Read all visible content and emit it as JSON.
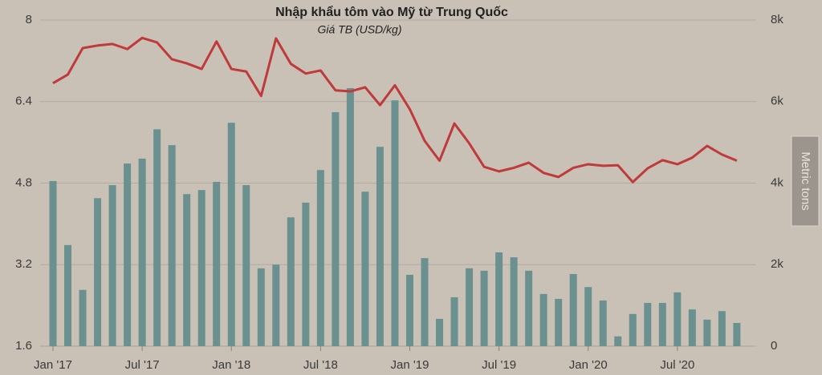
{
  "chart_data": {
    "type": "bar-line",
    "title": "Nhập khẩu tôm vào Mỹ từ Trung Quốc",
    "subtitle": "Giá TB (USD/kg)",
    "y2_label": "Metric tons",
    "categories": [
      "Jan '17",
      null,
      null,
      null,
      null,
      null,
      "Jul '17",
      null,
      null,
      null,
      null,
      null,
      "Jan '18",
      null,
      null,
      null,
      null,
      null,
      "Jul '18",
      null,
      null,
      null,
      null,
      null,
      "Jan '19",
      null,
      null,
      null,
      null,
      null,
      "Jul '19",
      null,
      null,
      null,
      null,
      null,
      "Jan '20",
      null,
      null,
      null,
      null,
      null,
      "Jul '20",
      null,
      null,
      null,
      null
    ],
    "series": [
      {
        "type": "bar",
        "axis": "y2",
        "color": "#6a9190",
        "values": [
          4050,
          2480,
          1380,
          3630,
          3950,
          4480,
          4600,
          5320,
          4930,
          3730,
          3830,
          4030,
          5480,
          3950,
          1910,
          2000,
          3160,
          3520,
          4320,
          5740,
          6330,
          3790,
          4890,
          6030,
          1750,
          2160,
          670,
          1200,
          1910,
          1850,
          2300,
          2180,
          1850,
          1280,
          1160,
          1770,
          1450,
          1120,
          240,
          790,
          1060,
          1060,
          1320,
          900,
          650,
          860,
          570
        ]
      },
      {
        "type": "line",
        "color": "#c0393b",
        "values": [
          6.76,
          6.93,
          7.45,
          7.5,
          7.53,
          7.43,
          7.65,
          7.56,
          7.23,
          7.15,
          7.04,
          7.58,
          7.04,
          6.99,
          6.51,
          7.64,
          7.14,
          6.95,
          7.01,
          6.62,
          6.6,
          6.68,
          6.33,
          6.72,
          6.25,
          5.63,
          5.24,
          5.97,
          5.58,
          5.12,
          5.03,
          5.1,
          5.2,
          5.0,
          4.92,
          5.1,
          5.17,
          5.14,
          5.15,
          4.82,
          5.09,
          5.25,
          5.17,
          5.3,
          5.53,
          5.36,
          5.24
        ]
      }
    ],
    "ylim": [
      1.6,
      8
    ],
    "yticks": [
      1.6,
      3.2,
      4.8,
      6.4,
      8
    ],
    "y2lim": [
      0,
      8000
    ],
    "y2ticks": [
      0,
      {
        "value": 2000,
        "label": "2k"
      },
      {
        "value": 4000,
        "label": "4k"
      },
      {
        "value": 6000,
        "label": "6k"
      },
      {
        "value": 8000,
        "label": "8k"
      }
    ],
    "grid": true
  }
}
